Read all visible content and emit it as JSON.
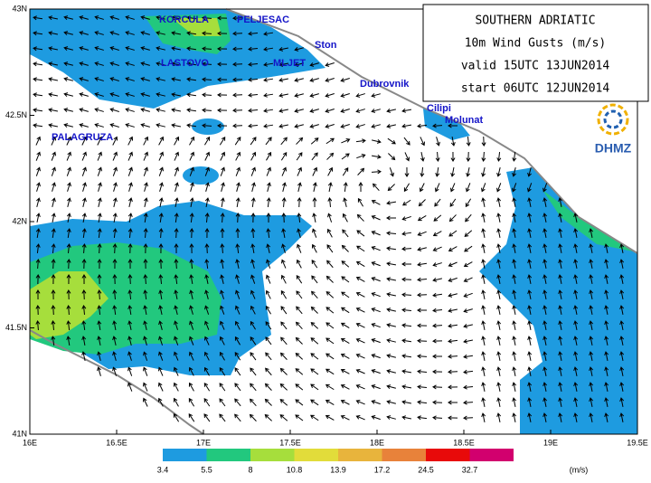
{
  "title_box": {
    "lines": [
      "SOUTHERN ADRIATIC",
      "10m Wind Gusts (m/s)",
      "valid 15UTC 13JUN2014",
      "start 06UTC 12JUN2014"
    ]
  },
  "logo": "DHMZ",
  "lon_range": [
    16,
    19.5
  ],
  "lat_range": [
    41,
    43
  ],
  "lon_ticks": [
    {
      "value": 16,
      "label": "16E"
    },
    {
      "value": 16.5,
      "label": "16.5E"
    },
    {
      "value": 17,
      "label": "17E"
    },
    {
      "value": 17.5,
      "label": "17.5E"
    },
    {
      "value": 18,
      "label": "18E"
    },
    {
      "value": 18.5,
      "label": "18.5E"
    },
    {
      "value": 19,
      "label": "19E"
    },
    {
      "value": 19.5,
      "label": "19.5E"
    }
  ],
  "lat_ticks": [
    {
      "value": 41,
      "label": "41N"
    },
    {
      "value": 41.5,
      "label": "41.5N"
    },
    {
      "value": 42,
      "label": "42N"
    },
    {
      "value": 42.5,
      "label": "42.5N"
    },
    {
      "value": 43,
      "label": "43N"
    }
  ],
  "places": [
    "KORCULA",
    "PELJESAC",
    "LASTOVO",
    "MLJET",
    "Ston",
    "Dubrovnik",
    "Cilipi",
    "Molunat",
    "PALAGRUZA"
  ],
  "colorbar": {
    "unit": "(m/s)",
    "levels": [
      {
        "value": 3.4,
        "label": "3.4"
      },
      {
        "value": 5.5,
        "label": "5.5"
      },
      8,
      {
        "value": 10.8,
        "label": "10.8"
      },
      {
        "value": 13.9,
        "label": "13.9"
      },
      {
        "value": 17.2,
        "label": "17.2"
      },
      {
        "value": 24.5,
        "label": "24.5"
      },
      {
        "value": 32.7,
        "label": "32.7"
      }
    ],
    "colors": [
      "#1e9be0",
      "#22c87e",
      "#a6de3c",
      "#e2dc3a",
      "#e8b43c",
      "#e8823a",
      "#e80a0a",
      "#d2006e"
    ]
  }
}
